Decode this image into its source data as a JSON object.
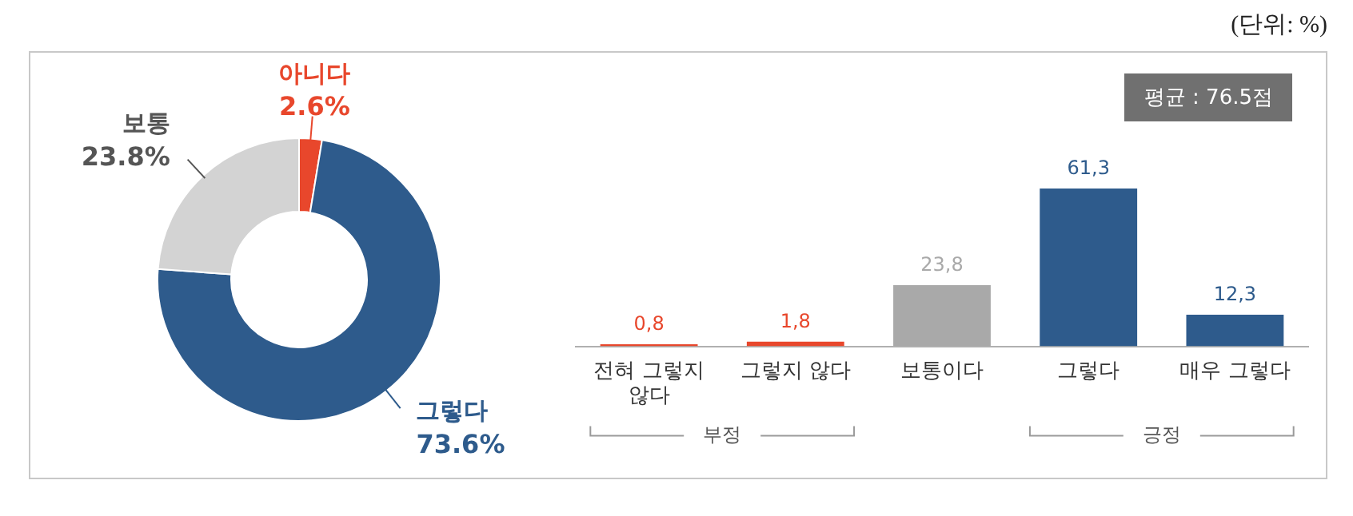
{
  "chart_data": [
    {
      "type": "donut",
      "categories": [
        "아니다",
        "그렇다",
        "보통"
      ],
      "values": [
        2.6,
        73.6,
        23.8
      ],
      "colors": [
        "#e8472c",
        "#2e5b8c",
        "#d3d3d3"
      ],
      "value_labels": [
        "2.6%",
        "73.6%",
        "23.8%"
      ]
    },
    {
      "type": "bar",
      "categories": [
        "전혀 그렇지 않다",
        "그렇지 않다",
        "보통이다",
        "그렇다",
        "매우 그렇다"
      ],
      "values": [
        0.8,
        1.8,
        23.8,
        61.3,
        12.3
      ],
      "colors": [
        "#e8472c",
        "#e8472c",
        "#a9a9a9",
        "#2e5b8c",
        "#2e5b8c"
      ],
      "value_labels": [
        "0,8",
        "1,8",
        "23,8",
        "61,3",
        "12,3"
      ],
      "tick_labels": "x",
      "annotations": [
        "(단위: %)",
        "평균 : 76.5점",
        "부정",
        "긍정"
      ]
    }
  ]
}
